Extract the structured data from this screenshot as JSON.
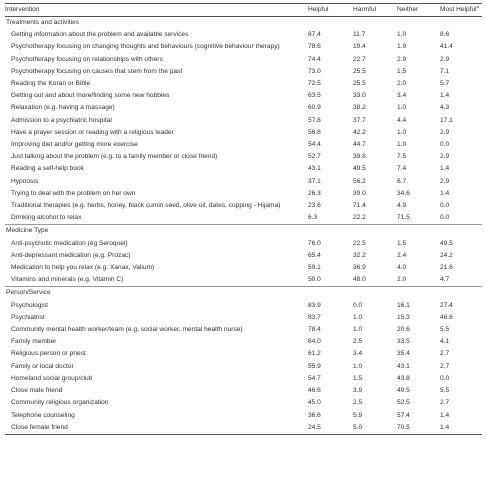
{
  "table": {
    "headers": [
      "Intervention",
      "Helpful",
      "Harmful",
      "Neither",
      "Most Helpful",
      "a"
    ],
    "sections": [
      {
        "title": "Treatments and activities",
        "rows": [
          [
            "Getting information about the problem and available services",
            "87.4",
            "11.7",
            "1.0",
            "8.6"
          ],
          [
            "Psychotherapy focusing on changing thoughts and behaviours (cognitive behaviour therapy)",
            "78.6",
            "19.4",
            "1.9",
            "41.4"
          ],
          [
            "Psychotherapy focusing on relationships with others",
            "74.4",
            "22.7",
            "2.9",
            "2.9"
          ],
          [
            "Psychotherapy focusing on causes that stem from the past",
            "73.0",
            "25.5",
            "1.5",
            "7.1"
          ],
          [
            "Reading the Koran or Bible",
            "72.5",
            "25.5",
            "2.0",
            "5.7"
          ],
          [
            "Getting out and about more/finding some new hobbies",
            "63.5",
            "33.0",
            "3.4",
            "1.4"
          ],
          [
            "Relaxation (e.g. having a massage)",
            "60.9",
            "38.2",
            "1.0",
            "4.3"
          ],
          [
            "Admission to a psychiatric hospital",
            "57.8",
            "37.7",
            "4.4",
            "17.1"
          ],
          [
            "Have a prayer session or reading with a religious leader",
            "56.8",
            "42.2",
            "1.0",
            "2.9"
          ],
          [
            "Improving diet and/or getting more exercise",
            "54.4",
            "44.7",
            "1.0",
            "0.0"
          ],
          [
            "Just talking about the problem (e.g. to a family member or close friend)",
            "52.7",
            "39.8",
            "7.5",
            "2.9"
          ],
          [
            "Reading a self-help book",
            "43.1",
            "49.5",
            "7.4",
            "1.4"
          ],
          [
            "Hypnosis",
            "37.1",
            "56.2",
            "6.7",
            "2.9"
          ],
          [
            "Trying to deal with the problem on her own",
            "26.3",
            "39.0",
            "34.6",
            "1.4"
          ],
          [
            "Traditional therapies (e.g. herbs, honey, black cumin seed, olive oil, dates, cupping - Hijama)",
            "23.6",
            "71.4",
            "4.9",
            "0.0"
          ],
          [
            "Drinking alcohol to relax",
            "6.3",
            "22.2",
            "71.5",
            "0.0"
          ]
        ]
      },
      {
        "title": "Medicine Type",
        "rows": [
          [
            "Anti-psychotic medication (eg Seroquel)",
            "76.0",
            "22.5",
            "1.5",
            "49.5"
          ],
          [
            "Anti-depressant medication (e.g. Prozac)",
            "65.4",
            "32.2",
            "2.4",
            "24.2"
          ],
          [
            "Medication to help you relax (e.g. Xanax, Valium)",
            "59.1",
            "36.9",
            "4.0",
            "21.6"
          ],
          [
            "Vitamins and minerals (e.g. Vitamin C)",
            "50.0",
            "48.0",
            "2.0",
            "4.7"
          ]
        ]
      },
      {
        "title": "Person/Service",
        "rows": [
          [
            "Psychologist",
            "83.9",
            "0.0",
            "16.1",
            "27.4"
          ],
          [
            "Psychiatrist",
            "83.7",
            "1.0",
            "15.3",
            "46.6"
          ],
          [
            "Community mental health worker/team (e.g. social worker, mental health nurse)",
            "78.4",
            "1.0",
            "20.6",
            "5.5"
          ],
          [
            "Family member",
            "64.0",
            "2.5",
            "33.5",
            "4.1"
          ],
          [
            "Religious person or priest",
            "61.2",
            "3.4",
            "35.4",
            "2.7"
          ],
          [
            "Family or local doctor",
            "55.9",
            "1.0",
            "43.1",
            "2.7"
          ],
          [
            "Homeland social group/club",
            "54.7",
            "1.5",
            "43.8",
            "0.0"
          ],
          [
            "Close male friend",
            "46.6",
            "3.9",
            "49.5",
            "5.5"
          ],
          [
            "Community religious organization",
            "45.0",
            "2.5",
            "52.5",
            "2.7"
          ],
          [
            "Telephone counseling",
            "36.6",
            "5.9",
            "57.4",
            "1.4"
          ],
          [
            "Close female friend",
            "24.5",
            "5.0",
            "70.5",
            "1.4"
          ]
        ]
      }
    ]
  }
}
